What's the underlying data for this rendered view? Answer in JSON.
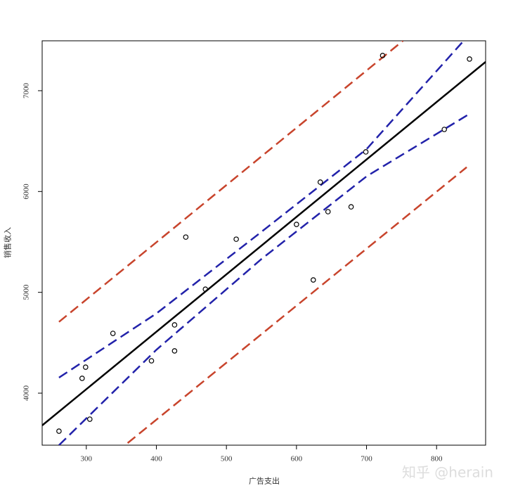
{
  "chart_data": {
    "type": "scatter",
    "xlabel": "广告支出",
    "ylabel": "销售收入",
    "x": [
      261,
      294,
      299,
      305,
      338,
      393,
      426,
      426,
      442,
      470,
      514,
      600,
      624,
      634,
      645,
      678,
      699,
      723,
      811,
      847
    ],
    "values": [
      3623,
      4147,
      4258,
      3742,
      4593,
      4321,
      4677,
      4419,
      5548,
      5031,
      5527,
      5674,
      5123,
      6093,
      5800,
      5848,
      6393,
      7349,
      6616,
      7314
    ],
    "color": "#000000",
    "lines": [
      {
        "color": "#000000",
        "dashed": false,
        "x": [
          237,
          870
        ],
        "values": [
          3680,
          7286
        ]
      },
      {
        "color": "#2222aa",
        "dashed": true,
        "x": [
          261,
          400,
          550,
          700,
          847
        ],
        "values": [
          4154,
          4790,
          5600,
          6420,
          7560
        ]
      },
      {
        "color": "#2222aa",
        "dashed": true,
        "x": [
          261,
          400,
          550,
          700,
          847
        ],
        "values": [
          3484,
          4430,
          5330,
          6150,
          6770
        ]
      },
      {
        "color": "#c8442c",
        "dashed": true,
        "x": [
          261,
          752
        ],
        "values": [
          4707,
          7495
        ]
      },
      {
        "color": "#c8442c",
        "dashed": true,
        "x": [
          359,
          843
        ],
        "values": [
          3505,
          6241
        ]
      }
    ],
    "xlim": [
      237,
      870
    ],
    "ylim": [
      3484,
      7495
    ],
    "xticks": [
      300,
      400,
      500,
      600,
      700,
      800
    ],
    "yticks": [
      4000,
      5000,
      6000,
      7000
    ],
    "watermark": "知乎 @herain"
  }
}
